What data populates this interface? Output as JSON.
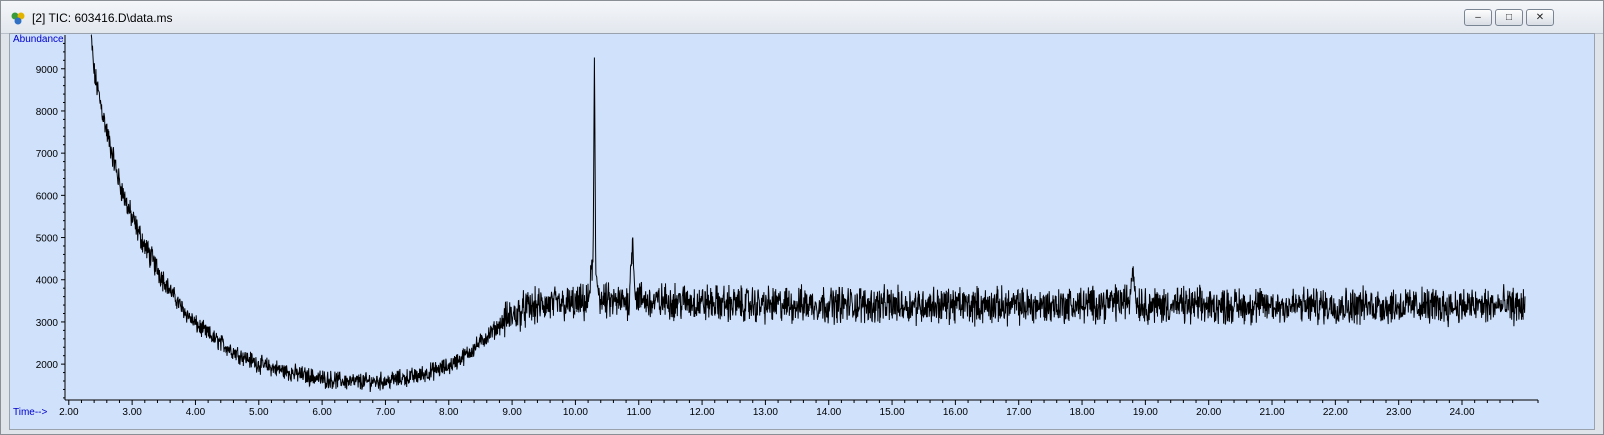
{
  "window": {
    "title": "[2] TIC: 603416.D\\data.ms",
    "controls": {
      "minimize": "–",
      "restore": "□",
      "close": "✕"
    },
    "app_icon": "chemstation-icon"
  },
  "chart_data": {
    "type": "line",
    "ylabel": "Abundance",
    "xlabel": "Time-->",
    "xlim": [
      1.94,
      25.2
    ],
    "ylim": [
      1150,
      9800
    ],
    "x_ticks": [
      "2.00",
      "3.00",
      "4.00",
      "5.00",
      "6.00",
      "7.00",
      "8.00",
      "9.00",
      "10.00",
      "11.00",
      "12.00",
      "13.00",
      "14.00",
      "15.00",
      "16.00",
      "17.00",
      "18.00",
      "19.00",
      "20.00",
      "21.00",
      "22.00",
      "23.00",
      "24.00"
    ],
    "y_ticks": [
      "2000",
      "3000",
      "4000",
      "5000",
      "6000",
      "7000",
      "8000",
      "9000"
    ],
    "grid": false,
    "colors": {
      "trace": "#000000",
      "background": "#cfe1fb",
      "axis_label": "#0000cc"
    },
    "series": [
      {
        "x": [
          2.35,
          2.4,
          2.5,
          2.6,
          2.7,
          2.8,
          2.9,
          3.0,
          3.2,
          3.4,
          3.6,
          3.8,
          4.0,
          4.3,
          4.6,
          5.0,
          5.5,
          6.0,
          6.5,
          7.0,
          7.5,
          8.0,
          8.3,
          8.6,
          8.9,
          9.2,
          9.5,
          10.0,
          10.2,
          10.28,
          10.3,
          10.32,
          10.4,
          10.6,
          10.85,
          10.9,
          10.95,
          11.2,
          11.5,
          12.0,
          13.0,
          14.0,
          15.0,
          16.0,
          17.0,
          18.0,
          18.75,
          18.8,
          18.85,
          19.0,
          20.0,
          21.0,
          22.0,
          23.0,
          24.0,
          25.0
        ],
        "y": [
          9800,
          8900,
          8200,
          7500,
          6900,
          6300,
          5850,
          5450,
          4800,
          4250,
          3750,
          3300,
          2950,
          2600,
          2300,
          2000,
          1800,
          1650,
          1580,
          1600,
          1720,
          1950,
          2250,
          2650,
          3050,
          3300,
          3400,
          3420,
          3450,
          4500,
          9150,
          4200,
          3500,
          3450,
          3500,
          5000,
          3600,
          3450,
          3500,
          3450,
          3400,
          3420,
          3400,
          3400,
          3380,
          3400,
          3500,
          4400,
          3500,
          3400,
          3380,
          3380,
          3390,
          3380,
          3380,
          3380
        ]
      }
    ]
  }
}
